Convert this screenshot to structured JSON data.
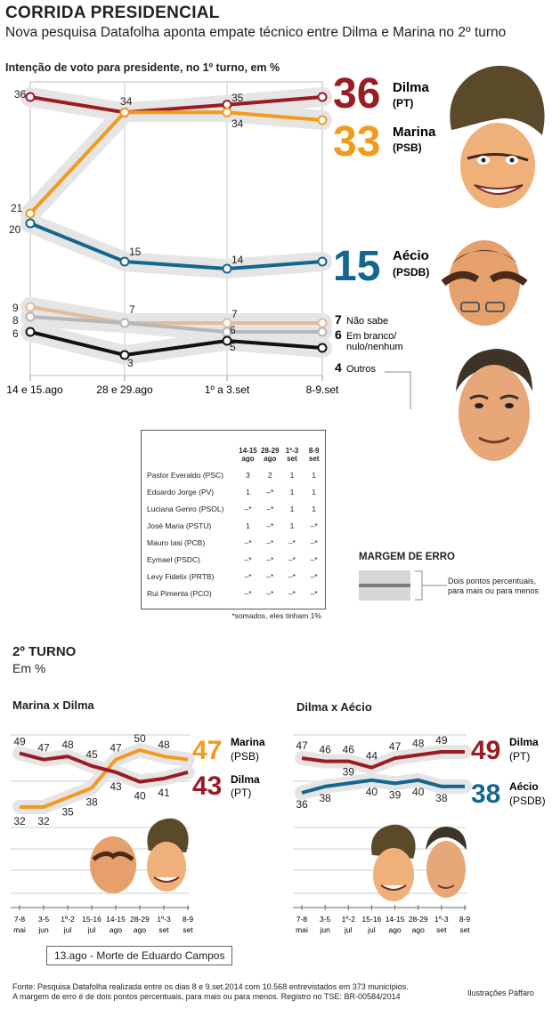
{
  "header": {
    "title": "CORRIDA PRESIDENCIAL",
    "subtitle": "Nova pesquisa Datafolha aponta empate técnico entre Dilma e Marina no 2º turno"
  },
  "colors": {
    "dilma": "#9b1b24",
    "marina": "#f39a1d",
    "aecio": "#14668f",
    "naosabe": "#e2bc99",
    "branco": "#b7b7b7",
    "outros": "#111111",
    "band": "#e5e5e5"
  },
  "first_round": {
    "label": "Intenção de voto para presidente, no 1º turno, em %",
    "results": [
      {
        "value": "36",
        "name": "Dilma",
        "party": "(PT)"
      },
      {
        "value": "33",
        "name": "Marina",
        "party": "(PSB)"
      },
      {
        "value": "15",
        "name": "Aécio",
        "party": "(PSDB)"
      }
    ],
    "minor": [
      {
        "value": "7",
        "label": "Não sabe"
      },
      {
        "value": "6",
        "label": "Em branco/ nulo/nenhum"
      },
      {
        "value": "4",
        "label": "Outros"
      }
    ]
  },
  "others_table": {
    "headers": [
      "14-15 ago",
      "28-29 ago",
      "1º-3 set",
      "8-9 set"
    ],
    "rows": [
      {
        "name": "Pastor Everaldo (PSC)",
        "values": [
          "3",
          "2",
          "1",
          "1"
        ]
      },
      {
        "name": "Eduardo Jorge (PV)",
        "values": [
          "1",
          "–*",
          "1",
          "1"
        ]
      },
      {
        "name": "Luciana Genro (PSOL)",
        "values": [
          "–*",
          "–*",
          "1",
          "1"
        ]
      },
      {
        "name": "José Maria (PSTU)",
        "values": [
          "1",
          "–*",
          "1",
          "–*"
        ]
      },
      {
        "name": "Mauro Iasi (PCB)",
        "values": [
          "–*",
          "–*",
          "–*",
          "–*"
        ]
      },
      {
        "name": "Eymael (PSDC)",
        "values": [
          "–*",
          "–*",
          "–*",
          "–*"
        ]
      },
      {
        "name": "Levy Fidelix (PRTB)",
        "values": [
          "–*",
          "–*",
          "–*",
          "–*"
        ]
      },
      {
        "name": "Rui Pimenta (PCO)",
        "values": [
          "–*",
          "–*",
          "–*",
          "–*"
        ]
      }
    ],
    "footnote": "*somados, eles tinham 1%"
  },
  "margin": {
    "title": "MARGEM DE ERRO",
    "text": "Dois pontos percentuais, para mais ou para menos"
  },
  "second_round": {
    "title": "2º TURNO",
    "unit": "Em %",
    "event_note": "13.ago - Morte de Eduardo Campos",
    "tick_labels": [
      [
        "7-8",
        "mai"
      ],
      [
        "3-5",
        "jun"
      ],
      [
        "1º-2",
        "jul"
      ],
      [
        "15-16",
        "jul"
      ],
      [
        "14-15",
        "ago"
      ],
      [
        "28-29",
        "ago"
      ],
      [
        "1º-3",
        "set"
      ],
      [
        "8-9",
        "set"
      ]
    ],
    "marina_dilma": {
      "label": "Marina x Dilma",
      "results": [
        {
          "value": "47",
          "name": "Marina",
          "party": "(PSB)"
        },
        {
          "value": "43",
          "name": "Dilma",
          "party": "(PT)"
        }
      ]
    },
    "dilma_aecio": {
      "label": "Dilma x Aécio",
      "results": [
        {
          "value": "49",
          "name": "Dilma",
          "party": "(PT)"
        },
        {
          "value": "38",
          "name": "Aécio",
          "party": "(PSDB)"
        }
      ]
    }
  },
  "footer": {
    "source": "Fonte: Pesquisa Datafolha realizada entre os dias 8 e 9.set.2014 com 10.568 entrevistados em 373 municípios.",
    "margin_note": "A margem de erro é de dois pontos percentuais, para mais ou para menos. Registro no TSE: BR-00584/2014",
    "credit": "Ilustrações Páffaro"
  },
  "chart_data": [
    {
      "type": "line",
      "x": [
        "14 e 15.ago",
        "28 e 29.ago",
        "1º a 3.set",
        "8-9.set"
      ],
      "series": [
        {
          "name": "Dilma",
          "values": [
            36,
            34,
            35,
            36
          ],
          "labels": [
            "36",
            "34",
            "35",
            ""
          ]
        },
        {
          "name": "Marina",
          "values": [
            21,
            34,
            34,
            33
          ],
          "labels": [
            "21",
            "",
            "34",
            ""
          ]
        },
        {
          "name": "Aécio",
          "values": [
            20,
            15,
            14,
            15
          ],
          "labels": [
            "20",
            "15",
            "14",
            ""
          ]
        },
        {
          "name": "Não sabe",
          "values": [
            9,
            7,
            7,
            7
          ],
          "labels": [
            "9",
            "7",
            "7",
            ""
          ]
        },
        {
          "name": "Em branco/ nulo/nenhum",
          "values": [
            8,
            7,
            6,
            6
          ],
          "labels": [
            "8",
            "",
            "6",
            ""
          ]
        },
        {
          "name": "Outros",
          "values": [
            6,
            3,
            5,
            4
          ],
          "labels": [
            "6",
            "3",
            "5",
            ""
          ]
        }
      ]
    },
    {
      "type": "line",
      "x": [
        "7-8 mai",
        "3-5 jun",
        "1º-2 jul",
        "15-16 jul",
        "14-15 ago",
        "28-29 ago",
        "1º-3 set",
        "8-9 set"
      ],
      "series": [
        {
          "name": "Marina",
          "values": [
            32,
            32,
            35,
            38,
            47,
            50,
            48,
            47
          ]
        },
        {
          "name": "Dilma",
          "values": [
            49,
            47,
            48,
            45,
            43,
            40,
            41,
            43
          ]
        }
      ]
    },
    {
      "type": "line",
      "x": [
        "7-8 mai",
        "3-5 jun",
        "1º-2 jul",
        "15-16 jul",
        "14-15 ago",
        "28-29 ago",
        "1º-3 set",
        "8-9 set"
      ],
      "series": [
        {
          "name": "Dilma",
          "values": [
            47,
            46,
            46,
            44,
            47,
            48,
            49,
            49
          ]
        },
        {
          "name": "Aécio",
          "values": [
            36,
            38,
            39,
            40,
            39,
            40,
            38,
            38
          ]
        }
      ]
    }
  ]
}
